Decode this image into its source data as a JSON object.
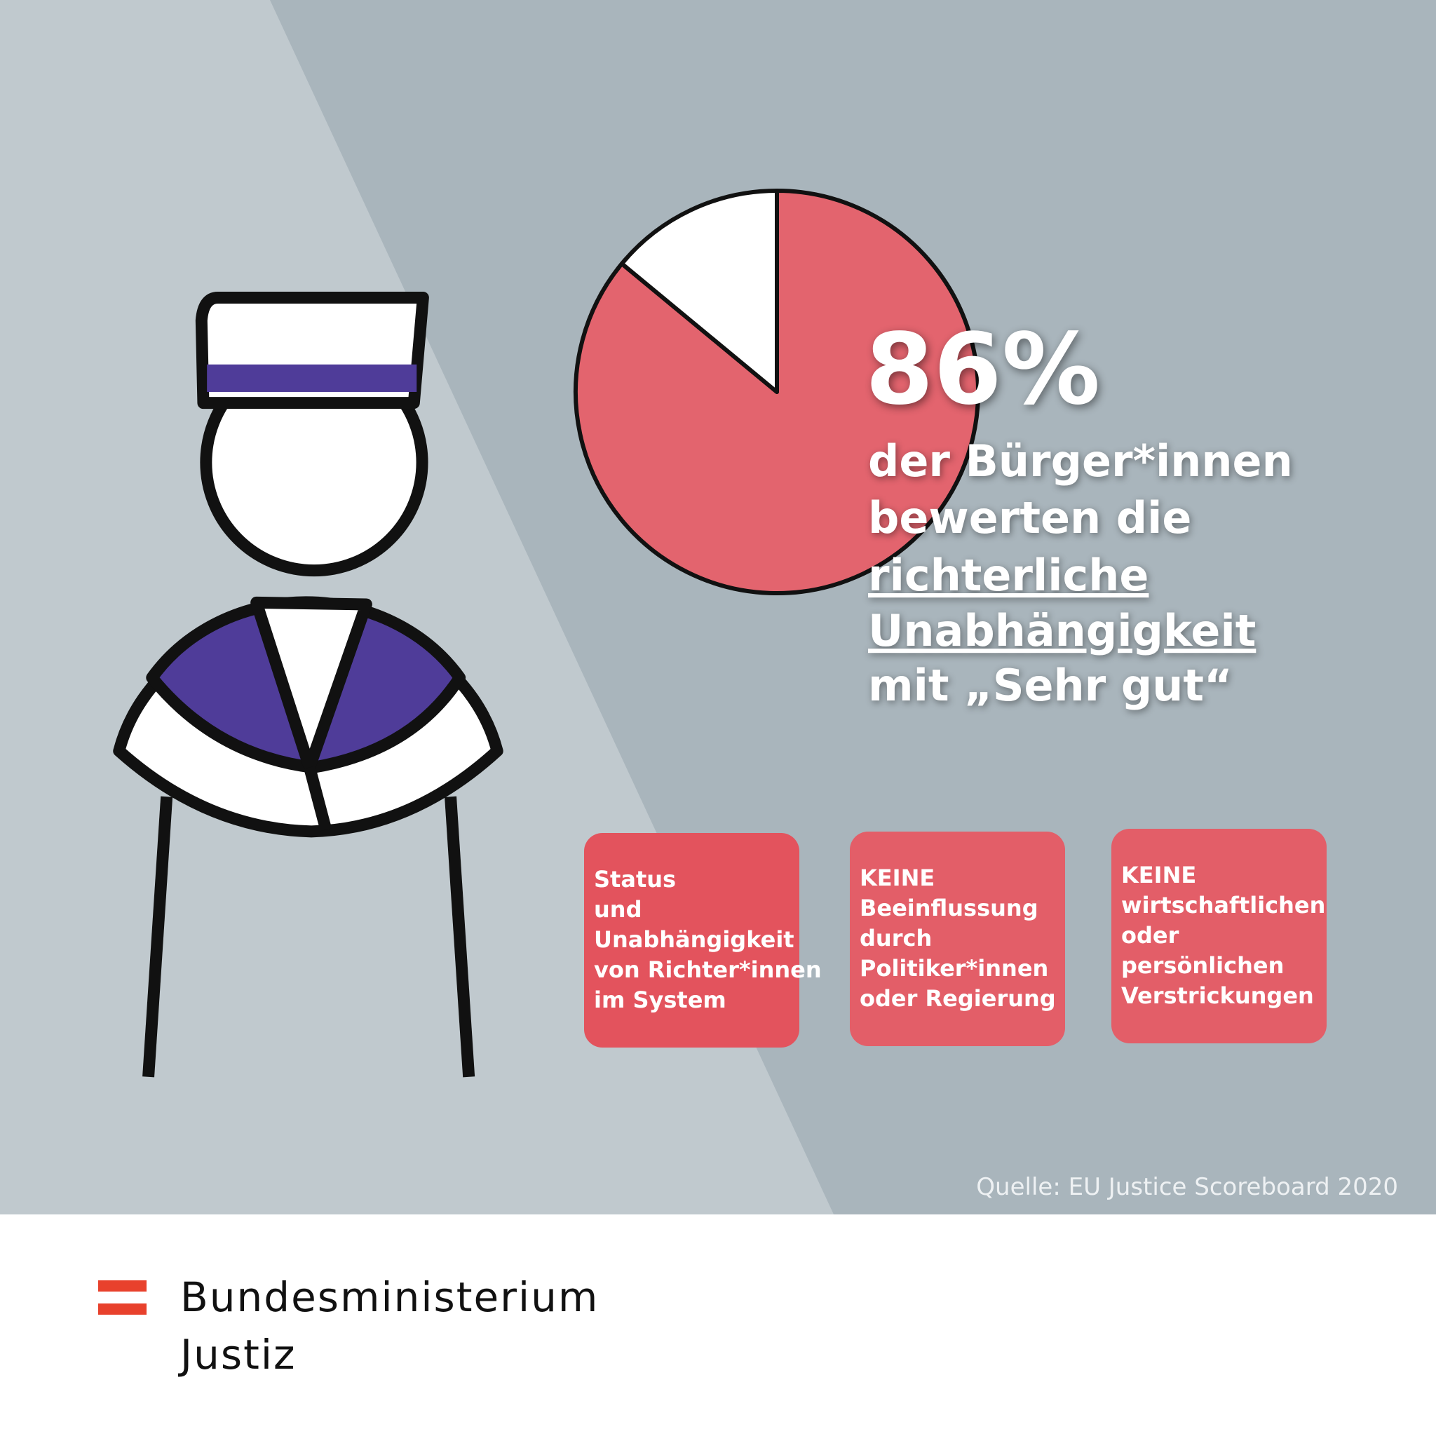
{
  "chart_data": {
    "type": "pie",
    "values": [
      86,
      14
    ],
    "value_labels": [
      "86%",
      null
    ],
    "colors": [
      "#e3646e",
      "#ffffff"
    ]
  },
  "description": [
    "der Bürger*innen",
    "bewerten die",
    "richterliche",
    "Unabhängigkeit",
    "mit „Sehr gut“"
  ],
  "boxes": [
    [
      "Status",
      "und",
      "Unabhängigkeit",
      "von Richter*innen",
      "im System"
    ],
    [
      "KEINE",
      "Beeinflussung",
      "durch",
      "Politiker*innen",
      "oder Regierung"
    ],
    [
      "KEINE",
      "wirtschaftlichen",
      "oder",
      "persönlichen",
      "Verstrickungen"
    ]
  ],
  "source": "Quelle: EU Justice Scoreboard 2020",
  "footer": {
    "line1": "Bundesministerium",
    "line2": "Justiz"
  }
}
